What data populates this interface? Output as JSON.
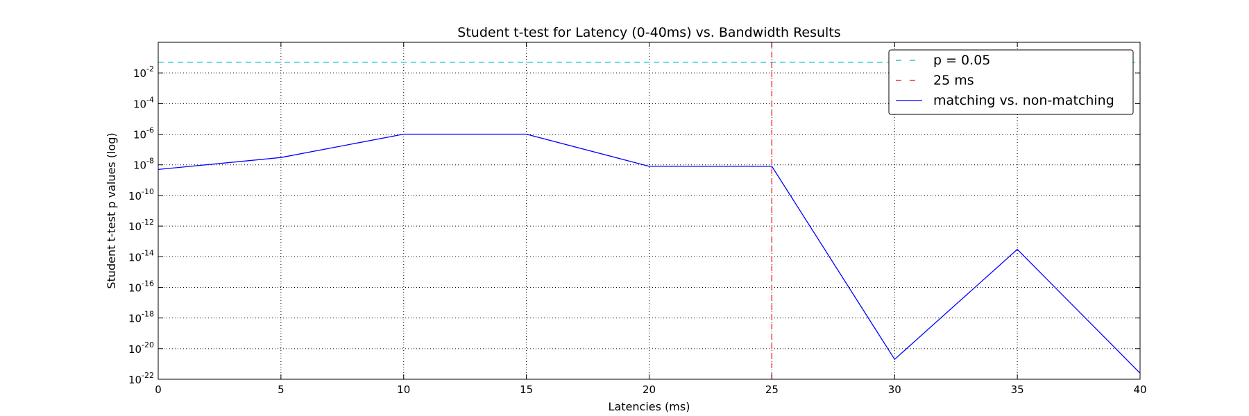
{
  "chart_data": {
    "type": "line",
    "title": "Student t-test for Latency (0-40ms) vs. Bandwidth Results",
    "xlabel": "Latencies (ms)",
    "ylabel": "Student t-test p values (log)",
    "y_scale": "log",
    "xlim": [
      0,
      40
    ],
    "ylim": [
      1e-22,
      1
    ],
    "x_ticks": [
      0,
      5,
      10,
      15,
      20,
      25,
      30,
      35,
      40
    ],
    "y_tick_exponents": [
      -22,
      -20,
      -18,
      -16,
      -14,
      -12,
      -10,
      -8,
      -6,
      -4,
      -2
    ],
    "grid": true,
    "legend_position": "top-right",
    "series": [
      {
        "name": "matching vs. non-matching",
        "color": "#0000ff",
        "x": [
          0,
          5,
          10,
          15,
          20,
          25,
          30,
          35,
          40
        ],
        "y": [
          5e-09,
          3e-08,
          1e-06,
          1e-06,
          8e-09,
          8e-09,
          2e-21,
          3e-14,
          2.5e-22
        ]
      }
    ],
    "reference_lines": [
      {
        "name": "p = 0.05",
        "orientation": "horizontal",
        "value": 0.05,
        "color": "#00bfbf",
        "style": "dashed"
      },
      {
        "name": "25 ms",
        "orientation": "vertical",
        "value": 25,
        "color": "#ff0000",
        "style": "dashed"
      }
    ]
  }
}
